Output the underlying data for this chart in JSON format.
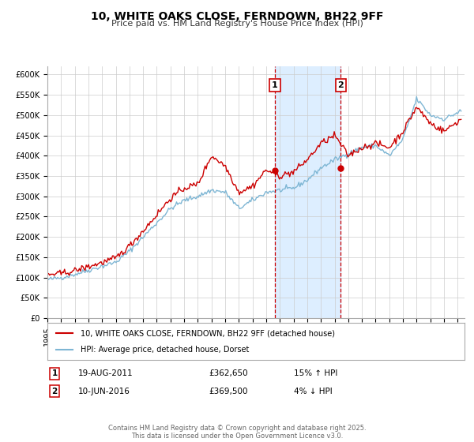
{
  "title": "10, WHITE OAKS CLOSE, FERNDOWN, BH22 9FF",
  "subtitle": "Price paid vs. HM Land Registry's House Price Index (HPI)",
  "ylim": [
    0,
    620000
  ],
  "xlim_start": 1995.0,
  "xlim_end": 2025.5,
  "yticks": [
    0,
    50000,
    100000,
    150000,
    200000,
    250000,
    300000,
    350000,
    400000,
    450000,
    500000,
    550000,
    600000
  ],
  "ytick_labels": [
    "£0",
    "£50K",
    "£100K",
    "£150K",
    "£200K",
    "£250K",
    "£300K",
    "£350K",
    "£400K",
    "£450K",
    "£500K",
    "£550K",
    "£600K"
  ],
  "xticks": [
    1995,
    1996,
    1997,
    1998,
    1999,
    2000,
    2001,
    2002,
    2003,
    2004,
    2005,
    2006,
    2007,
    2008,
    2009,
    2010,
    2011,
    2012,
    2013,
    2014,
    2015,
    2016,
    2017,
    2018,
    2019,
    2020,
    2021,
    2022,
    2023,
    2024,
    2025
  ],
  "sale1_x": 2011.636,
  "sale1_y": 362650,
  "sale1_label": "1",
  "sale1_date": "19-AUG-2011",
  "sale1_price": "£362,650",
  "sale1_hpi": "15% ↑ HPI",
  "sale2_x": 2016.44,
  "sale2_y": 369500,
  "sale2_label": "2",
  "sale2_date": "10-JUN-2016",
  "sale2_price": "£369,500",
  "sale2_hpi": "4% ↓ HPI",
  "red_color": "#cc0000",
  "blue_color": "#7eb6d4",
  "shade_color": "#ddeeff",
  "legend_label_red": "10, WHITE OAKS CLOSE, FERNDOWN, BH22 9FF (detached house)",
  "legend_label_blue": "HPI: Average price, detached house, Dorset",
  "footer": "Contains HM Land Registry data © Crown copyright and database right 2025.\nThis data is licensed under the Open Government Licence v3.0.",
  "background_color": "#ffffff",
  "grid_color": "#cccccc",
  "title_fontsize": 10,
  "subtitle_fontsize": 8,
  "tick_fontsize": 7,
  "legend_fontsize": 7,
  "annotation_fontsize": 7,
  "footer_fontsize": 6
}
